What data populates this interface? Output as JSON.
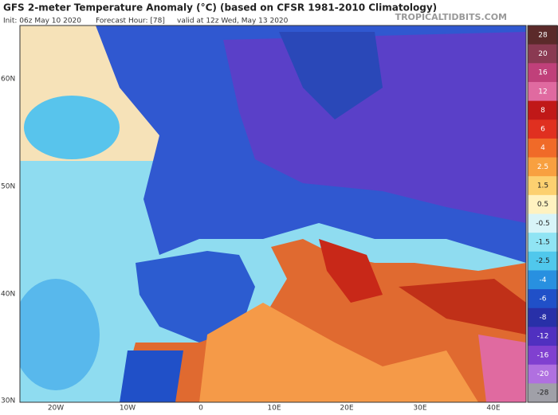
{
  "header": {
    "title": "GFS 2-meter Temperature Anomaly (°C) (based on CFSR 1981-2010 Climatology)",
    "init": "Init: 06z May 10 2020",
    "forecast_hour": "Forecast Hour: [78]",
    "valid": "valid at 12z Wed, May 13 2020",
    "brand": "TROPICALTIDBITS.COM"
  },
  "map": {
    "lat_labels": [
      "60N",
      "50N",
      "40N",
      "30N"
    ],
    "lon_labels": [
      "20W",
      "10W",
      "0",
      "10E",
      "20E",
      "30E",
      "40E"
    ]
  },
  "colorbar": {
    "entries": [
      {
        "label": "28",
        "color": "#5b2a2a"
      },
      {
        "label": "20",
        "color": "#8a3a52"
      },
      {
        "label": "16",
        "color": "#c0407a"
      },
      {
        "label": "12",
        "color": "#e06aa0"
      },
      {
        "label": "8",
        "color": "#c01818"
      },
      {
        "label": "6",
        "color": "#e03020"
      },
      {
        "label": "4",
        "color": "#f06a28"
      },
      {
        "label": "2.5",
        "color": "#f8a040"
      },
      {
        "label": "1.5",
        "color": "#fcd070"
      },
      {
        "label": "0.5",
        "color": "#fff2c0"
      },
      {
        "label": "-0.5",
        "color": "#d8f4f8"
      },
      {
        "label": "-1.5",
        "color": "#90e4f4"
      },
      {
        "label": "-2.5",
        "color": "#50c8ec"
      },
      {
        "label": "-4",
        "color": "#2890e0"
      },
      {
        "label": "-6",
        "color": "#2050c8"
      },
      {
        "label": "-8",
        "color": "#2830a8"
      },
      {
        "label": "-12",
        "color": "#5030c0"
      },
      {
        "label": "-16",
        "color": "#8040d0"
      },
      {
        "label": "-20",
        "color": "#b070e0"
      },
      {
        "label": "-28",
        "color": "#a0a0a8"
      }
    ]
  }
}
